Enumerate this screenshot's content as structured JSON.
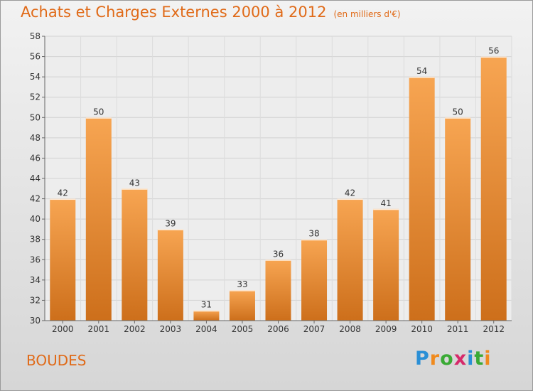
{
  "header": {
    "title": "Achats et Charges Externes 2000 à 2012",
    "subtitle": "(en milliers d'€)"
  },
  "footer": {
    "commune": "BOUDES",
    "brand": "Proxiti",
    "brand_letters": [
      "P",
      "r",
      "o",
      "x",
      "i",
      "t",
      "i"
    ],
    "brand_colors": [
      "#2a8fd6",
      "#f08a1d",
      "#3aaa35",
      "#d62a6a",
      "#2a8fd6",
      "#3aaa35",
      "#f08a1d"
    ]
  },
  "colors": {
    "accent": "#e06a18",
    "bar_top": "#f7a552",
    "bar_bottom": "#cd6f1b"
  },
  "chart_data": {
    "type": "bar",
    "categories": [
      "2000",
      "2001",
      "2002",
      "2003",
      "2004",
      "2005",
      "2006",
      "2007",
      "2008",
      "2009",
      "2010",
      "2011",
      "2012"
    ],
    "values": [
      42,
      50,
      43,
      39,
      31,
      33,
      36,
      38,
      42,
      41,
      54,
      50,
      56
    ],
    "data_labels": [
      "42",
      "50",
      "43",
      "39",
      "31",
      "33",
      "36",
      "38",
      "42",
      "41",
      "54",
      "50",
      "56"
    ],
    "ylim": [
      30,
      58
    ],
    "yticks": [
      30,
      32,
      34,
      36,
      38,
      40,
      42,
      44,
      46,
      48,
      50,
      52,
      54,
      56,
      58
    ],
    "ytick_labels": [
      "30",
      "32",
      "34",
      "36",
      "38",
      "40",
      "42",
      "44",
      "46",
      "48",
      "50",
      "52",
      "54",
      "56",
      "58"
    ],
    "grid": true,
    "legend": "none"
  }
}
